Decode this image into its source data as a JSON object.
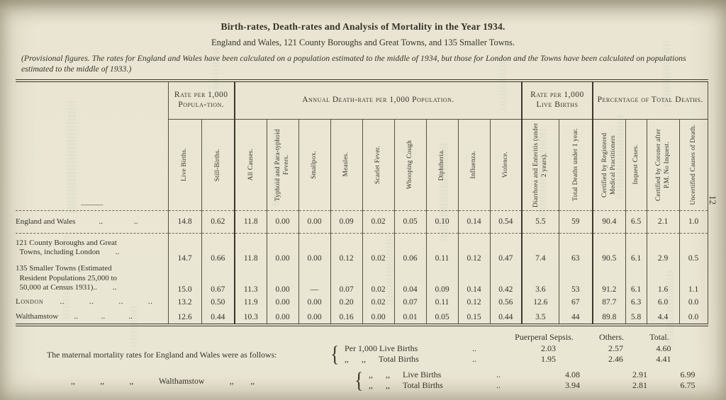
{
  "page": {
    "number": "12"
  },
  "title": "Birth-rates, Death-rates and Analysis of Mortality in the Year 1934.",
  "subtitle": "England and Wales, 121 County Boroughs and Great Towns, and 135 Smaller Towns.",
  "note": "(Provisional figures.  The rates for England and Wales have been calculated on a population estimated to the middle of 1934, but those for London and the Towns have been calculated on populations estimated to the middle of 1933.)",
  "table": {
    "stub_dash": "———",
    "groups": [
      {
        "title": "Rate per 1,000 Popula-tion."
      },
      {
        "title": "Annual Death-rate per 1,000 Population."
      },
      {
        "title": "Rate per 1,000 Live Births"
      },
      {
        "title": "Percentage of Total Deaths."
      }
    ],
    "columns": [
      "Live Births.",
      "Still-Births.",
      "All Causes.",
      "Typhoid and Para-typhoid Fevers.",
      "Smallpox.",
      "Measles.",
      "Scarlet Fever.",
      "Whooping Cough",
      "Diphtheria.",
      "Influenza.",
      "Violence.",
      "Diarrhoea and Enteritis (under 2 years).",
      "Total Deaths under 1 year.",
      "Certified by Registered Medical Practitioners",
      "Inquest Cases.",
      "Certified by Coroner after P.M. No Inquest.",
      "Uncertified Causes of Death."
    ],
    "rows": [
      {
        "label": "England and Wales   ..    ..",
        "dashed": true,
        "caps": false,
        "values": [
          "14.8",
          "0.62",
          "11.8",
          "0.00",
          "0.00",
          "0.09",
          "0.02",
          "0.05",
          "0.10",
          "0.14",
          "0.54",
          "5.5",
          "59",
          "90.4",
          "6.5",
          "2.1",
          "1.0"
        ]
      },
      {
        "label": "121 County Boroughs and Great\n  Towns, including London  ..",
        "dashed": false,
        "caps": false,
        "values": [
          "14.7",
          "0.66",
          "11.8",
          "0.00",
          "0.00",
          "0.12",
          "0.02",
          "0.06",
          "0.11",
          "0.12",
          "0.47",
          "7.4",
          "63",
          "90.5",
          "6.1",
          "2.9",
          "0.5"
        ]
      },
      {
        "label": "135 Smaller Towns (Estimated\n  Resident Populations 25,000 to\n  50,000 at Census 1931)..  ..",
        "dashed": false,
        "caps": false,
        "values": [
          "15.0",
          "0.67",
          "11.3",
          "0.00",
          "—",
          "0.07",
          "0.02",
          "0.04",
          "0.09",
          "0.14",
          "0.42",
          "3.6",
          "53",
          "91.2",
          "6.1",
          "1.6",
          "1.1"
        ]
      },
      {
        "label": "London  ..   ..   ..   ..",
        "dashed": false,
        "caps": true,
        "values": [
          "13.2",
          "0.50",
          "11.9",
          "0.00",
          "0.00",
          "0.20",
          "0.02",
          "0.07",
          "0.11",
          "0.12",
          "0.56",
          "12.6",
          "67",
          "87.7",
          "6.3",
          "6.0",
          "0.0"
        ]
      },
      {
        "label": "Walthamstow  ..   ..   ..",
        "dashed": false,
        "caps": false,
        "values": [
          "12.6",
          "0.44",
          "10.3",
          "0.00",
          "0.00",
          "0.16",
          "0.00",
          "0.01",
          "0.05",
          "0.15",
          "0.44",
          "3.5",
          "44",
          "89.8",
          "5.8",
          "4.4",
          "0.0"
        ]
      }
    ]
  },
  "footer": {
    "col_headers": [
      "Puerperal Sepsis.",
      "Others.",
      "Total."
    ],
    "blocks": [
      {
        "label": "The maternal mortality rates for England and Wales were as follows:",
        "brace": "{",
        "lines": [
          {
            "name": "Per 1,000 Live Births",
            "dots": "..",
            "values": [
              "2.03",
              "2.57",
              "4.60"
            ]
          },
          {
            "name": ",,  ,,  Total Births",
            "dots": "..",
            "values": [
              "1.95",
              "2.46",
              "4.41"
            ]
          }
        ]
      },
      {
        "label": ",,   ,,   ,,   Walthamstow   ,,  ,,",
        "brace": "{",
        "lines": [
          {
            "name": ",,  ,,  Live Births",
            "dots": "..",
            "values": [
              "4.08",
              "2.91",
              "6.99"
            ]
          },
          {
            "name": ",,  ,,  Total Births",
            "dots": "..",
            "values": [
              "3.94",
              "2.81",
              "6.75"
            ]
          }
        ]
      }
    ]
  }
}
